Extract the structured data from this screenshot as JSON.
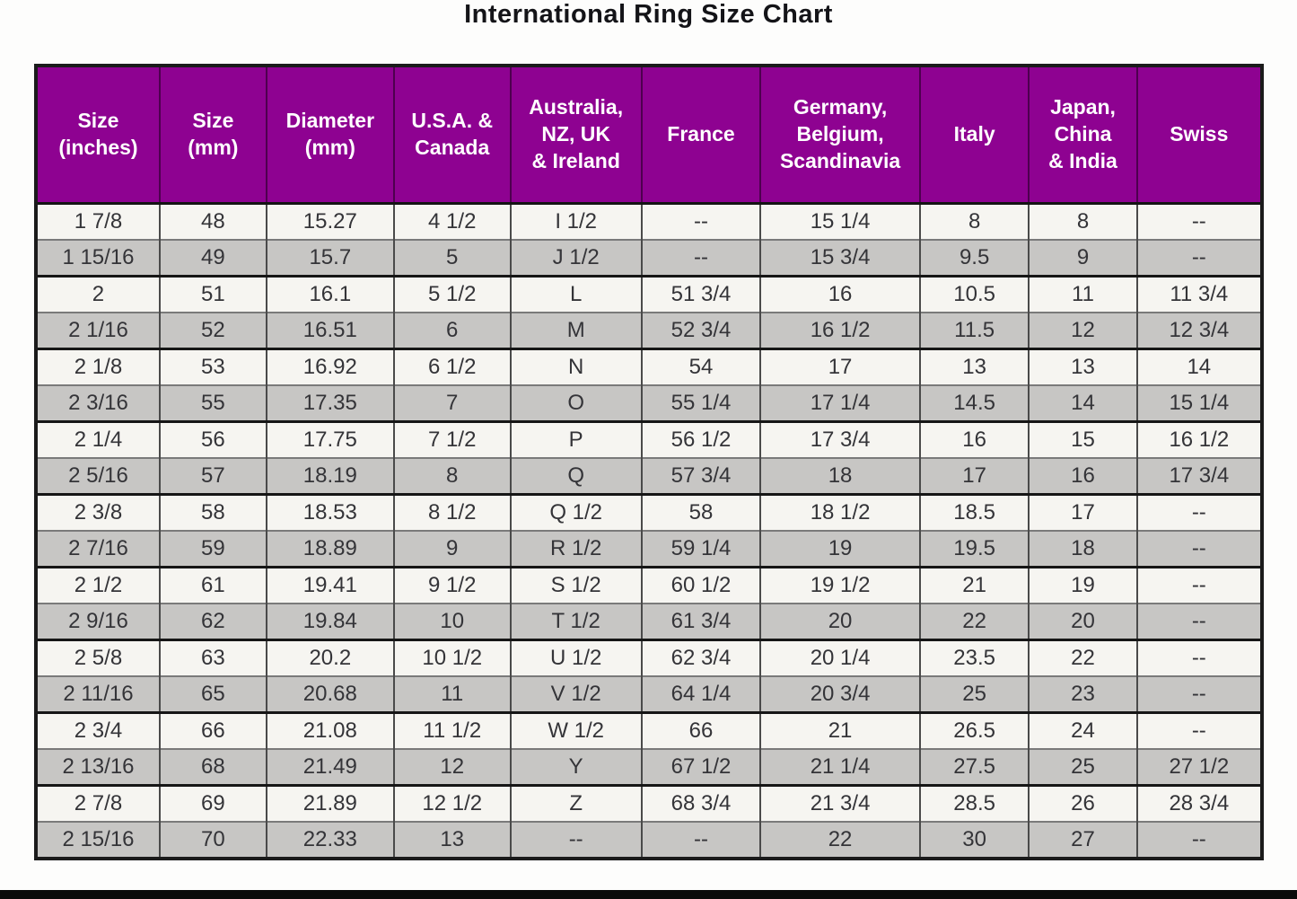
{
  "title": "International Ring Size Chart",
  "colors": {
    "header_bg": "#8e0291",
    "header_text": "#ffffff",
    "row_white": "#f6f5f1",
    "row_gray": "#c7c6c4",
    "outer_border": "#1b1b1b",
    "cell_text": "#343438"
  },
  "chart_data": {
    "type": "table",
    "title": "International Ring Size Chart",
    "columns": [
      "Size\n(inches)",
      "Size\n(mm)",
      "Diameter\n(mm)",
      "U.S.A. &\nCanada",
      "Australia,\nNZ, UK\n& Ireland",
      "France",
      "Germany,\nBelgium,\nScandinavia",
      "Italy",
      "Japan,\nChina\n& India",
      "Swiss"
    ],
    "rows": [
      [
        "1 7/8",
        "48",
        "15.27",
        "4 1/2",
        "I 1/2",
        "--",
        "15 1/4",
        "8",
        "8",
        "--"
      ],
      [
        "1 15/16",
        "49",
        "15.7",
        "5",
        "J 1/2",
        "--",
        "15 3/4",
        "9.5",
        "9",
        "--"
      ],
      [
        "2",
        "51",
        "16.1",
        "5 1/2",
        "L",
        "51 3/4",
        "16",
        "10.5",
        "11",
        "11 3/4"
      ],
      [
        "2 1/16",
        "52",
        "16.51",
        "6",
        "M",
        "52 3/4",
        "16 1/2",
        "11.5",
        "12",
        "12 3/4"
      ],
      [
        "2 1/8",
        "53",
        "16.92",
        "6 1/2",
        "N",
        "54",
        "17",
        "13",
        "13",
        "14"
      ],
      [
        "2 3/16",
        "55",
        "17.35",
        "7",
        "O",
        "55 1/4",
        "17 1/4",
        "14.5",
        "14",
        "15 1/4"
      ],
      [
        "2 1/4",
        "56",
        "17.75",
        "7 1/2",
        "P",
        "56 1/2",
        "17 3/4",
        "16",
        "15",
        "16 1/2"
      ],
      [
        "2 5/16",
        "57",
        "18.19",
        "8",
        "Q",
        "57 3/4",
        "18",
        "17",
        "16",
        "17 3/4"
      ],
      [
        "2 3/8",
        "58",
        "18.53",
        "8 1/2",
        "Q 1/2",
        "58",
        "18 1/2",
        "18.5",
        "17",
        "--"
      ],
      [
        "2 7/16",
        "59",
        "18.89",
        "9",
        "R 1/2",
        "59 1/4",
        "19",
        "19.5",
        "18",
        "--"
      ],
      [
        "2 1/2",
        "61",
        "19.41",
        "9 1/2",
        "S 1/2",
        "60 1/2",
        "19 1/2",
        "21",
        "19",
        "--"
      ],
      [
        "2 9/16",
        "62",
        "19.84",
        "10",
        "T 1/2",
        "61 3/4",
        "20",
        "22",
        "20",
        "--"
      ],
      [
        "2 5/8",
        "63",
        "20.2",
        "10 1/2",
        "U 1/2",
        "62 3/4",
        "20 1/4",
        "23.5",
        "22",
        "--"
      ],
      [
        "2 11/16",
        "65",
        "20.68",
        "11",
        "V 1/2",
        "64 1/4",
        "20 3/4",
        "25",
        "23",
        "--"
      ],
      [
        "2 3/4",
        "66",
        "21.08",
        "11 1/2",
        "W 1/2",
        "66",
        "21",
        "26.5",
        "24",
        "--"
      ],
      [
        "2 13/16",
        "68",
        "21.49",
        "12",
        "Y",
        "67 1/2",
        "21 1/4",
        "27.5",
        "25",
        "27 1/2"
      ],
      [
        "2 7/8",
        "69",
        "21.89",
        "12 1/2",
        "Z",
        "68 3/4",
        "21 3/4",
        "28.5",
        "26",
        "28 3/4"
      ],
      [
        "2 15/16",
        "70",
        "22.33",
        "13",
        "--",
        "--",
        "22",
        "30",
        "27",
        "--"
      ]
    ]
  }
}
